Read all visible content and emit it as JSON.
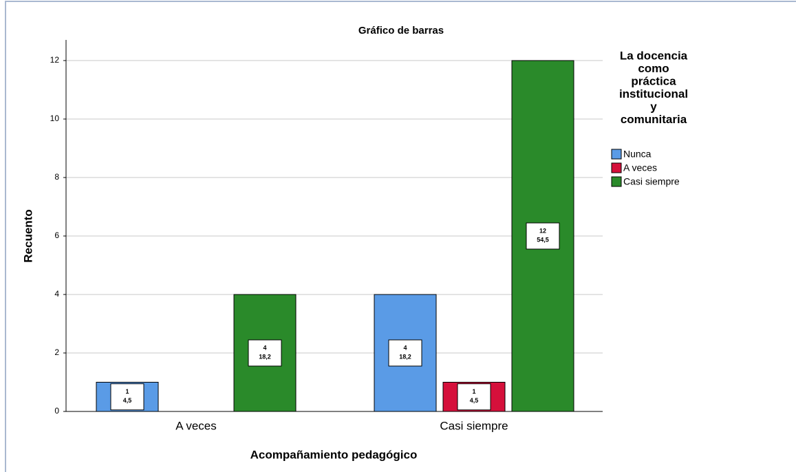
{
  "chart_data": {
    "type": "bar",
    "title": "Gráfico de barras",
    "x_label": "Acompañamiento pedagógico",
    "y_label": "Recuento",
    "legend_title": [
      "La docencia",
      "como",
      "práctica",
      "institucional",
      "y",
      "comunitaria"
    ],
    "categories": [
      "A veces",
      "Casi siempre"
    ],
    "series": [
      {
        "name": "Nunca",
        "color": "#5a9be6",
        "values": [
          1,
          4
        ],
        "percent_labels": [
          "4,5",
          "18,2"
        ]
      },
      {
        "name": "A veces",
        "color": "#d5103b",
        "values": [
          null,
          1
        ],
        "percent_labels": [
          null,
          "4,5"
        ]
      },
      {
        "name": "Casi siempre",
        "color": "#2a8a2a",
        "values": [
          4,
          12
        ],
        "percent_labels": [
          "18,2",
          "54,5"
        ]
      }
    ],
    "ylim": [
      0,
      12
    ],
    "yticks": [
      0,
      2,
      4,
      6,
      8,
      10,
      12
    ],
    "grid": true,
    "legend": "right"
  }
}
